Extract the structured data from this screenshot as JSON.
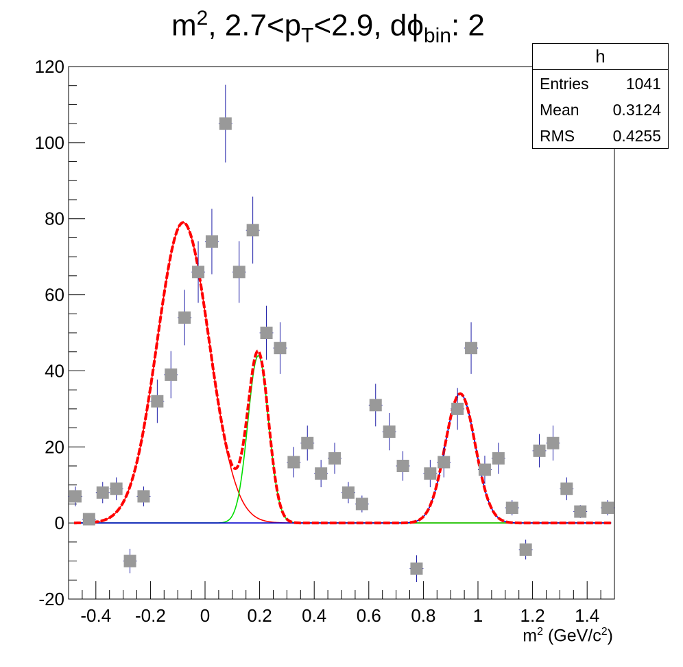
{
  "title": {
    "prefix": "m",
    "sup1": "2",
    "mid": ", 2.7<p",
    "sub1": "T",
    "mid2": "<2.9, dϕ",
    "sub2": "bin",
    "suffix": ": 2"
  },
  "stats_box": {
    "name": "h",
    "entries_label": "Entries",
    "entries_value": "1041",
    "mean_label": "Mean",
    "mean_value": "0.3124",
    "rms_label": "RMS",
    "rms_value": "0.4255"
  },
  "xlabel": {
    "base": "m",
    "sup": "2",
    "unit_open": " (GeV/c",
    "unit_sup": "2",
    "unit_close": ")"
  },
  "chart_data": {
    "type": "scatter",
    "xlim": [
      -0.5,
      1.5
    ],
    "ylim": [
      -20,
      120
    ],
    "x_ticks": [
      -0.4,
      -0.2,
      0,
      0.2,
      0.4,
      0.6,
      0.8,
      1,
      1.2,
      1.4
    ],
    "x_tick_labels": [
      "-0.4",
      "-0.2",
      "0",
      "0.2",
      "0.4",
      "0.6",
      "0.8",
      "1",
      "1.2",
      "1.4"
    ],
    "y_ticks": [
      -20,
      0,
      20,
      40,
      60,
      80,
      100,
      120
    ],
    "y_tick_labels": [
      "-20",
      "0",
      "20",
      "40",
      "60",
      "80",
      "100",
      "120"
    ],
    "grid": false,
    "points": [
      {
        "x": -0.475,
        "y": 7,
        "err": 2.6
      },
      {
        "x": -0.425,
        "y": 1,
        "err": 1.0
      },
      {
        "x": -0.375,
        "y": 8,
        "err": 2.8
      },
      {
        "x": -0.325,
        "y": 9,
        "err": 3.0
      },
      {
        "x": -0.275,
        "y": -10,
        "err": 3.2
      },
      {
        "x": -0.225,
        "y": 7,
        "err": 2.6
      },
      {
        "x": -0.175,
        "y": 32,
        "err": 5.7
      },
      {
        "x": -0.125,
        "y": 39,
        "err": 6.2
      },
      {
        "x": -0.075,
        "y": 54,
        "err": 7.3
      },
      {
        "x": -0.025,
        "y": 66,
        "err": 8.1
      },
      {
        "x": 0.025,
        "y": 74,
        "err": 8.6
      },
      {
        "x": 0.075,
        "y": 105,
        "err": 10.2
      },
      {
        "x": 0.125,
        "y": 66,
        "err": 8.1
      },
      {
        "x": 0.175,
        "y": 77,
        "err": 8.8
      },
      {
        "x": 0.225,
        "y": 50,
        "err": 7.1
      },
      {
        "x": 0.275,
        "y": 46,
        "err": 6.8
      },
      {
        "x": 0.325,
        "y": 16,
        "err": 4.0
      },
      {
        "x": 0.375,
        "y": 21,
        "err": 4.6
      },
      {
        "x": 0.425,
        "y": 13,
        "err": 3.6
      },
      {
        "x": 0.475,
        "y": 17,
        "err": 4.1
      },
      {
        "x": 0.525,
        "y": 8,
        "err": 2.8
      },
      {
        "x": 0.575,
        "y": 5,
        "err": 2.2
      },
      {
        "x": 0.625,
        "y": 31,
        "err": 5.6
      },
      {
        "x": 0.675,
        "y": 24,
        "err": 4.9
      },
      {
        "x": 0.725,
        "y": 15,
        "err": 3.9
      },
      {
        "x": 0.775,
        "y": -12,
        "err": 3.5
      },
      {
        "x": 0.825,
        "y": 13,
        "err": 3.6
      },
      {
        "x": 0.875,
        "y": 16,
        "err": 4.0
      },
      {
        "x": 0.925,
        "y": 30,
        "err": 5.5
      },
      {
        "x": 0.975,
        "y": 46,
        "err": 6.8
      },
      {
        "x": 1.025,
        "y": 14,
        "err": 3.7
      },
      {
        "x": 1.075,
        "y": 17,
        "err": 4.1
      },
      {
        "x": 1.125,
        "y": 4,
        "err": 2.0
      },
      {
        "x": 1.175,
        "y": -7,
        "err": 2.6
      },
      {
        "x": 1.225,
        "y": 19,
        "err": 4.4
      },
      {
        "x": 1.275,
        "y": 21,
        "err": 4.6
      },
      {
        "x": 1.325,
        "y": 9,
        "err": 3.0
      },
      {
        "x": 1.375,
        "y": 3,
        "err": 1.7
      },
      {
        "x": 1.475,
        "y": 4,
        "err": 2.0
      }
    ],
    "fits": [
      {
        "kind": "gaussian",
        "amplitude": 79,
        "mean": -0.08,
        "sigma": 0.095,
        "color": "#ff0000",
        "role": "component"
      },
      {
        "kind": "gaussian",
        "amplitude": 44,
        "mean": 0.195,
        "sigma": 0.038,
        "color": "#00dd00",
        "role": "component"
      },
      {
        "kind": "gaussian",
        "amplitude": 34,
        "mean": 0.935,
        "sigma": 0.055,
        "color": "#0000cc",
        "role": "component"
      },
      {
        "kind": "sum",
        "color": "#ff0000",
        "style": "dashed",
        "role": "total"
      }
    ],
    "colors": {
      "marker": "#999999",
      "errorbar": "#1a1aa6",
      "axis": "#000000"
    }
  }
}
